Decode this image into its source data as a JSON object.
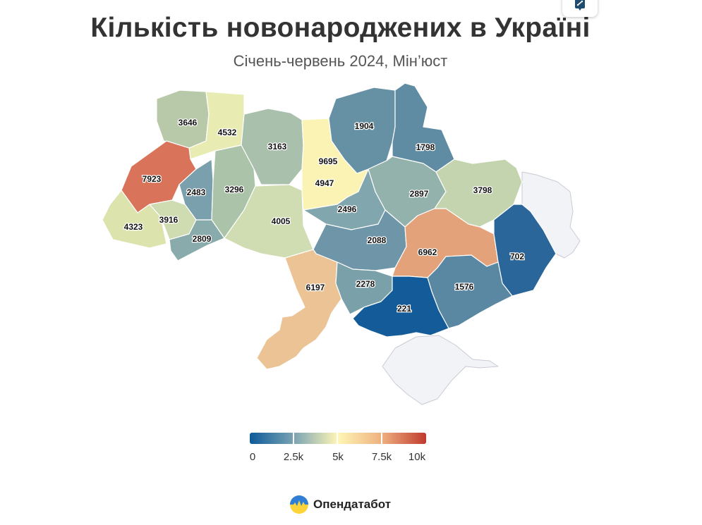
{
  "header": {
    "title": "Кількість новонароджених в Україні",
    "subtitle": "Січень-червень 2024, Мін’юст"
  },
  "share_button": {
    "icon": "share-icon"
  },
  "legend": {
    "labels": [
      "0",
      "2.5k",
      "5k",
      "7.5k",
      "10k"
    ],
    "min": 0,
    "max": 10000,
    "colors": [
      "#0d5a99",
      "#7aa3b3",
      "#fff6b5",
      "#eeb07f",
      "#c03a2e"
    ]
  },
  "regions": [
    {
      "value": "3646",
      "color": "#b7c9a9"
    },
    {
      "value": "4532",
      "color": "#e9ecb2"
    },
    {
      "value": "3163",
      "color": "#a9c0ad"
    },
    {
      "value": "7923",
      "color": "#d9745a"
    },
    {
      "value": "2483",
      "color": "#7a9fad"
    },
    {
      "value": "3296",
      "color": "#aac3a9"
    },
    {
      "value": "4323",
      "color": "#dde3ad"
    },
    {
      "value": "3916",
      "color": "#cfdbb0"
    },
    {
      "value": "2809",
      "color": "#8aabab"
    },
    {
      "value": "4005",
      "color": "#d0dcb1"
    },
    {
      "value": "9695",
      "color": "#c64a3a"
    },
    {
      "value": "4947",
      "color": "#fbf3b4"
    },
    {
      "value": "1904",
      "color": "#6690a3"
    },
    {
      "value": "1798",
      "color": "#5f8ca2"
    },
    {
      "value": "2496",
      "color": "#82a6ad"
    },
    {
      "value": "2897",
      "color": "#94b2ac"
    },
    {
      "value": "3798",
      "color": "#c3d4ae"
    },
    {
      "value": "2088",
      "color": "#6f96a8"
    },
    {
      "value": "6962",
      "color": "#e3a27a"
    },
    {
      "value": "702",
      "color": "#2a669a"
    },
    {
      "value": "6197",
      "color": "#ecc395"
    },
    {
      "value": "2278",
      "color": "#7aa0a9"
    },
    {
      "value": "1576",
      "color": "#5a87a2"
    },
    {
      "value": "221",
      "color": "#145c99"
    }
  ],
  "brand": {
    "name": "Опендатабот",
    "logo": "opendatabot-logo-icon"
  }
}
